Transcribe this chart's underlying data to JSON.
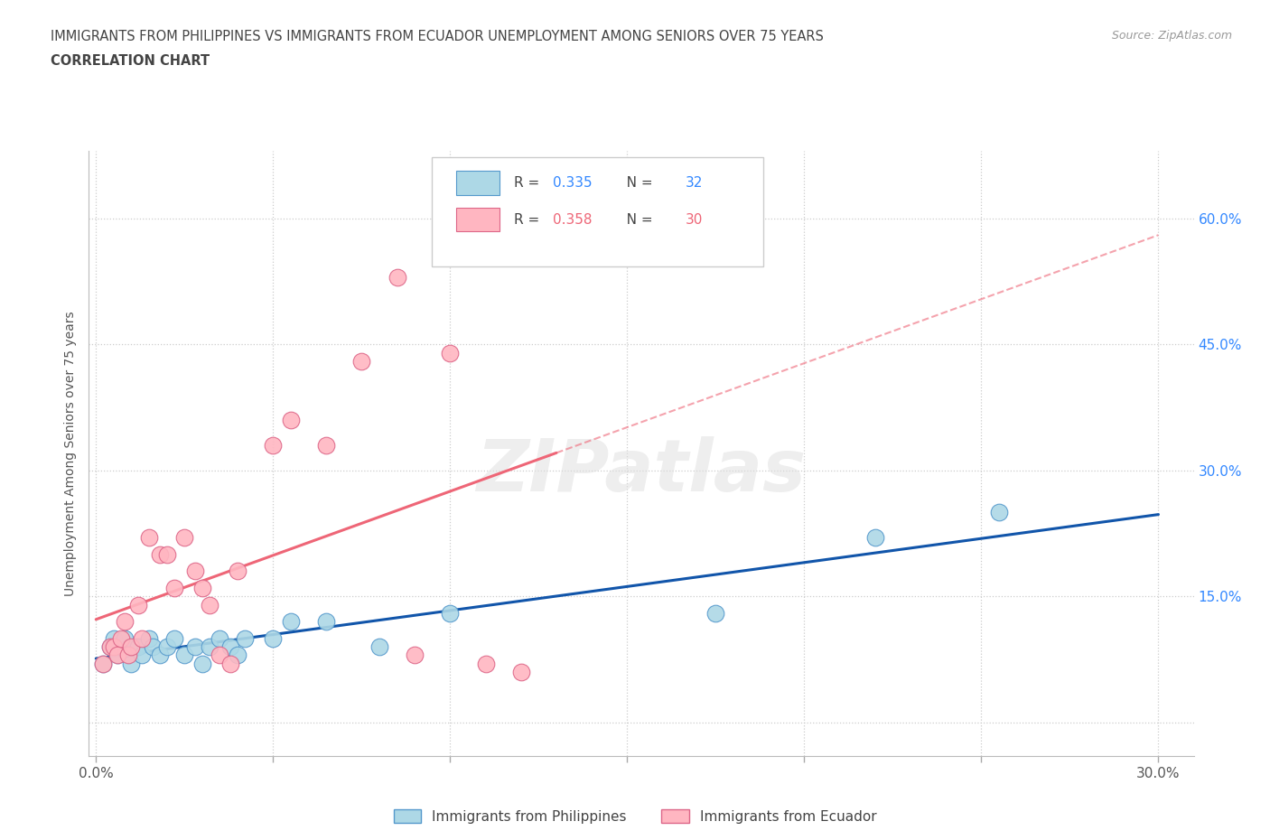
{
  "title_line1": "IMMIGRANTS FROM PHILIPPINES VS IMMIGRANTS FROM ECUADOR UNEMPLOYMENT AMONG SENIORS OVER 75 YEARS",
  "title_line2": "CORRELATION CHART",
  "source": "Source: ZipAtlas.com",
  "ylabel": "Unemployment Among Seniors over 75 years",
  "xlim": [
    -0.002,
    0.31
  ],
  "ylim": [
    -0.04,
    0.68
  ],
  "xticks": [
    0.0,
    0.05,
    0.1,
    0.15,
    0.2,
    0.25,
    0.3
  ],
  "yticks": [
    0.0,
    0.15,
    0.3,
    0.45,
    0.6
  ],
  "color_philippines": "#ADD8E6",
  "color_ecuador": "#FFB6C1",
  "edge_philippines": "#5599CC",
  "edge_ecuador": "#DD6688",
  "line_color_philippines": "#1155AA",
  "line_color_ecuador": "#EE6677",
  "r_philippines": 0.335,
  "n_philippines": 32,
  "r_ecuador": 0.358,
  "n_ecuador": 30,
  "watermark": "ZIPatlas",
  "philippines_x": [
    0.002,
    0.004,
    0.005,
    0.006,
    0.007,
    0.008,
    0.009,
    0.01,
    0.011,
    0.012,
    0.013,
    0.015,
    0.016,
    0.018,
    0.02,
    0.022,
    0.025,
    0.028,
    0.03,
    0.032,
    0.035,
    0.038,
    0.04,
    0.042,
    0.05,
    0.055,
    0.065,
    0.08,
    0.1,
    0.175,
    0.22,
    0.255
  ],
  "philippines_y": [
    0.07,
    0.09,
    0.1,
    0.08,
    0.09,
    0.1,
    0.08,
    0.07,
    0.09,
    0.09,
    0.08,
    0.1,
    0.09,
    0.08,
    0.09,
    0.1,
    0.08,
    0.09,
    0.07,
    0.09,
    0.1,
    0.09,
    0.08,
    0.1,
    0.1,
    0.12,
    0.12,
    0.09,
    0.13,
    0.13,
    0.22,
    0.25
  ],
  "ecuador_x": [
    0.002,
    0.004,
    0.005,
    0.006,
    0.007,
    0.008,
    0.009,
    0.01,
    0.012,
    0.013,
    0.015,
    0.018,
    0.02,
    0.022,
    0.025,
    0.028,
    0.03,
    0.032,
    0.035,
    0.038,
    0.04,
    0.05,
    0.055,
    0.065,
    0.075,
    0.085,
    0.09,
    0.1,
    0.11,
    0.12
  ],
  "ecuador_y": [
    0.07,
    0.09,
    0.09,
    0.08,
    0.1,
    0.12,
    0.08,
    0.09,
    0.14,
    0.1,
    0.22,
    0.2,
    0.2,
    0.16,
    0.22,
    0.18,
    0.16,
    0.14,
    0.08,
    0.07,
    0.18,
    0.33,
    0.36,
    0.33,
    0.43,
    0.53,
    0.08,
    0.44,
    0.07,
    0.06
  ],
  "background_color": "#ffffff",
  "grid_color": "#cccccc",
  "title_color": "#444444",
  "tick_label_color_right": "#3388FF"
}
